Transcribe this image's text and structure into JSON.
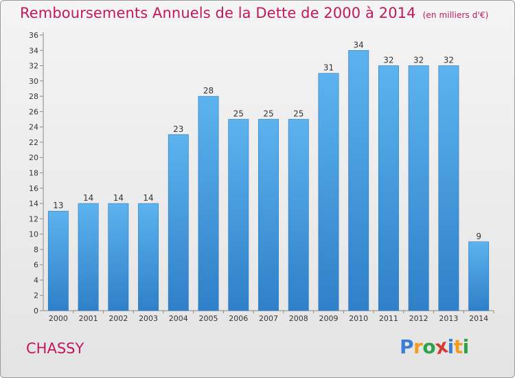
{
  "title": "Remboursements Annuels de la Dette de 2000 à 2014",
  "unit": "(en milliers d'€)",
  "commune": "CHASSY",
  "logo": {
    "letters": [
      "P",
      "r",
      "o",
      "x",
      "i",
      "t",
      "i"
    ],
    "colors": [
      "#3b7fd4",
      "#f29d1e",
      "#2ca24a",
      "#d63b2f",
      "#3b7fd4",
      "#f29d1e",
      "#2ca24a"
    ]
  },
  "colors": {
    "bar": "#3a96e0",
    "title": "#c2185b"
  },
  "chart_data": {
    "type": "bar",
    "categories": [
      "2000",
      "2001",
      "2002",
      "2003",
      "2004",
      "2005",
      "2006",
      "2007",
      "2008",
      "2009",
      "2010",
      "2011",
      "2012",
      "2013",
      "2014"
    ],
    "values": [
      13,
      14,
      14,
      14,
      23,
      28,
      25,
      25,
      25,
      31,
      34,
      32,
      32,
      32,
      9
    ],
    "title": "Remboursements Annuels de la Dette de 2000 à 2014",
    "xlabel": "",
    "ylabel": "",
    "ylim": [
      0,
      36
    ],
    "yticks": [
      0,
      2,
      4,
      6,
      8,
      10,
      12,
      14,
      16,
      18,
      20,
      22,
      24,
      26,
      28,
      30,
      32,
      34,
      36
    ],
    "grid": false,
    "data_labels": true
  }
}
